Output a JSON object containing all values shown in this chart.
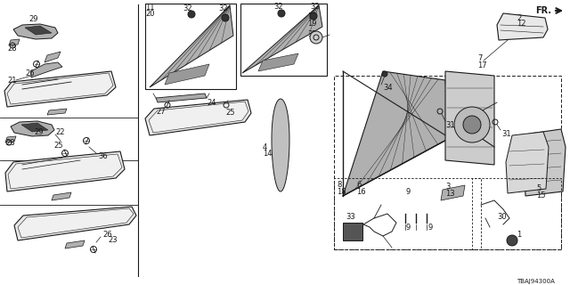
{
  "bg_color": "#ffffff",
  "line_color": "#1a1a1a",
  "part_number": "TBAJ94300A",
  "fig_width": 6.4,
  "fig_height": 3.2,
  "dpi": 100
}
